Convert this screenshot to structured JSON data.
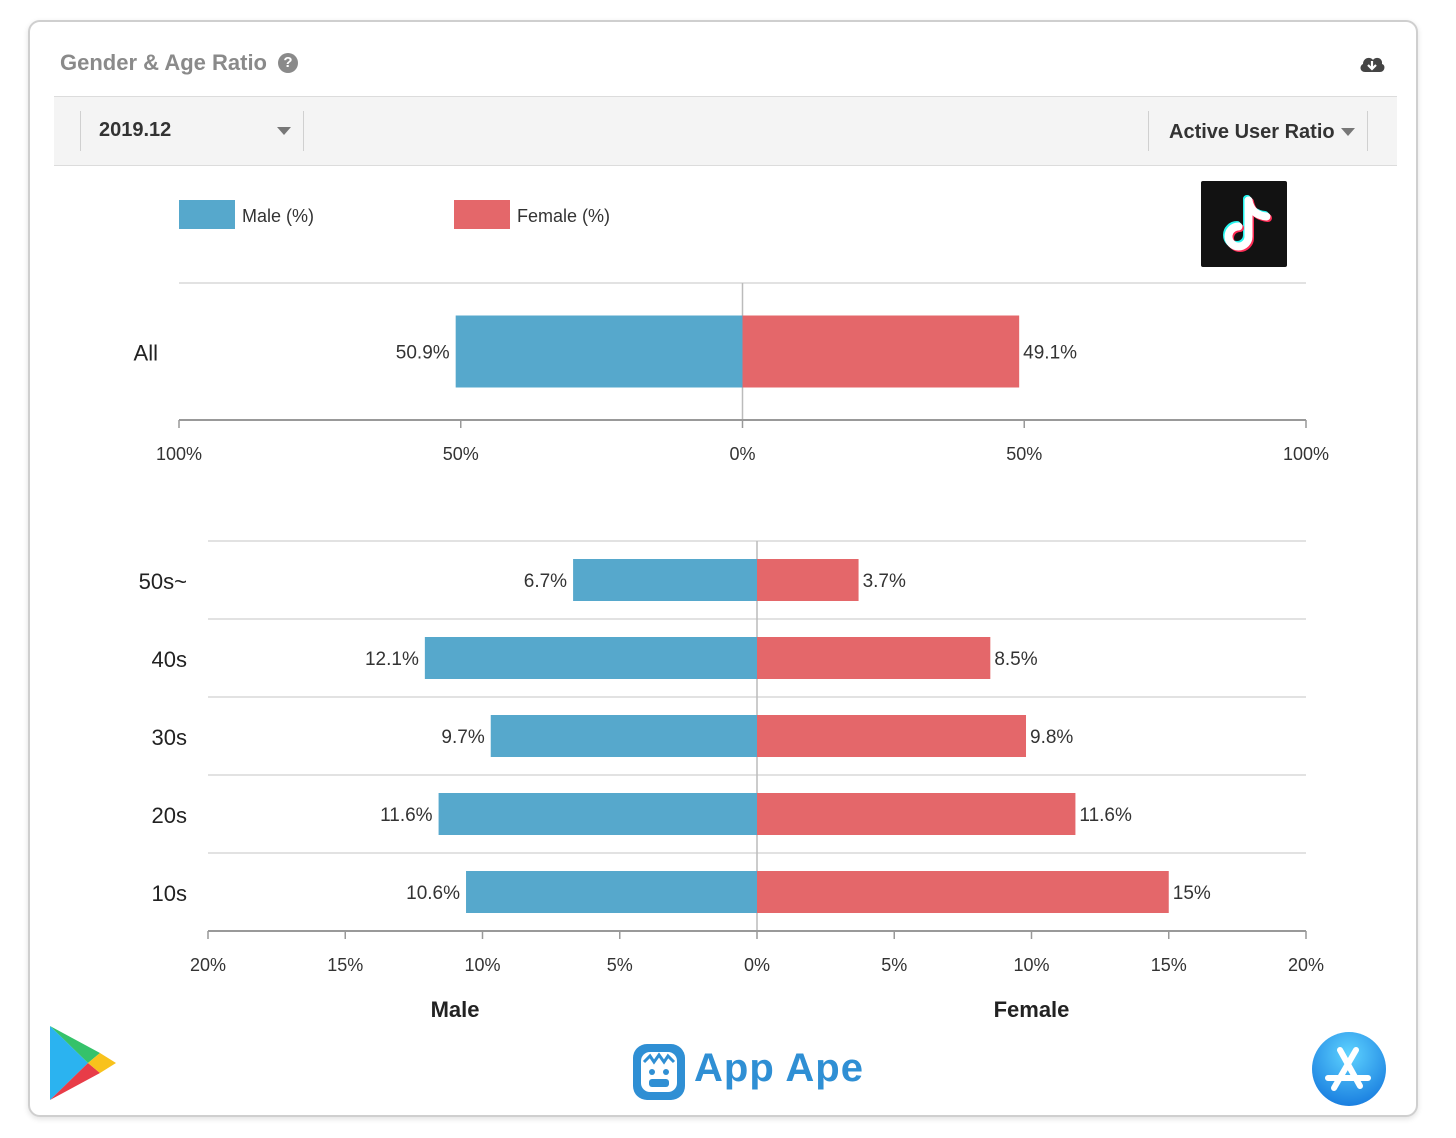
{
  "panel": {
    "title": "Gender & Age Ratio",
    "help_icon": "question-circle-icon",
    "download_icon": "cloud-download-icon"
  },
  "toolbar": {
    "period_select": "2019.12",
    "metric_select": "Active User Ratio"
  },
  "legend": {
    "male": "Male (%)",
    "female": "Female (%)"
  },
  "colors": {
    "male": "#56a8cc",
    "female": "#e4676a",
    "grid": "#d8d8d8",
    "axis": "#888888"
  },
  "chart_data": [
    {
      "type": "bar",
      "orientation": "horizontal-diverging",
      "categories": [
        "All"
      ],
      "series": [
        {
          "name": "Male (%)",
          "values": [
            50.9
          ],
          "labels": [
            "50.9%"
          ]
        },
        {
          "name": "Female (%)",
          "values": [
            49.1
          ],
          "labels": [
            "49.1%"
          ]
        }
      ],
      "xlim": [
        -100,
        100
      ],
      "ticks": [
        -100,
        -50,
        0,
        50,
        100
      ],
      "tick_labels": [
        "100%",
        "50%",
        "0%",
        "50%",
        "100%"
      ]
    },
    {
      "type": "bar",
      "orientation": "horizontal-diverging",
      "categories": [
        "50s~",
        "40s",
        "30s",
        "20s",
        "10s"
      ],
      "series": [
        {
          "name": "Male (%)",
          "values": [
            6.7,
            12.1,
            9.7,
            11.6,
            10.6
          ],
          "labels": [
            "6.7%",
            "12.1%",
            "9.7%",
            "11.6%",
            "10.6%"
          ]
        },
        {
          "name": "Female (%)",
          "values": [
            3.7,
            8.5,
            9.8,
            11.6,
            15
          ],
          "labels": [
            "3.7%",
            "8.5%",
            "9.8%",
            "11.6%",
            "15%"
          ]
        }
      ],
      "xlim": [
        -20,
        20
      ],
      "ticks": [
        -20,
        -15,
        -10,
        -5,
        0,
        5,
        10,
        15,
        20
      ],
      "tick_labels": [
        "20%",
        "15%",
        "10%",
        "5%",
        "0%",
        "5%",
        "10%",
        "15%",
        "20%"
      ],
      "xlabel_left": "Male",
      "xlabel_right": "Female"
    }
  ],
  "footer": {
    "brand": "App Ape",
    "left_store": "google-play-icon",
    "right_store": "app-store-icon"
  }
}
